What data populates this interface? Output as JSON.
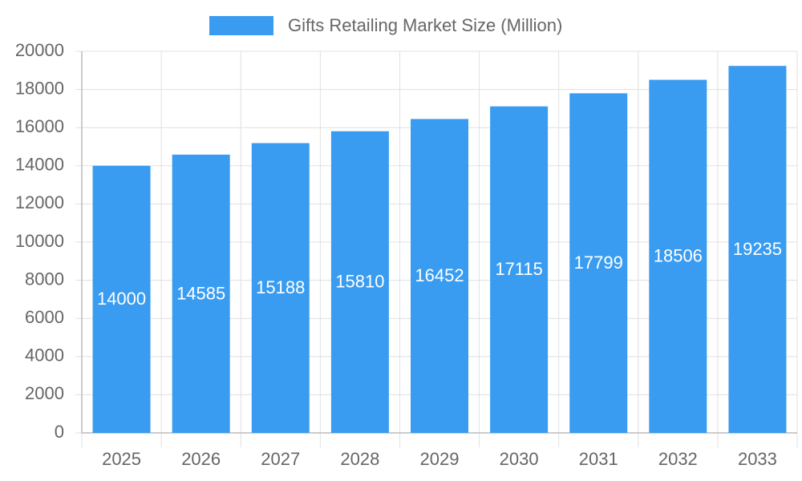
{
  "chart_data": {
    "type": "bar",
    "categories": [
      "2025",
      "2026",
      "2027",
      "2028",
      "2029",
      "2030",
      "2031",
      "2032",
      "2033"
    ],
    "series": [
      {
        "name": "Gifts Retailing Market Size (Million)",
        "color": "#399cf0",
        "values": [
          14000,
          14585,
          15188,
          15810,
          16452,
          17115,
          17799,
          18506,
          19235
        ]
      }
    ],
    "ylim": [
      0,
      20000
    ],
    "yticks": [
      0,
      2000,
      4000,
      6000,
      8000,
      10000,
      12000,
      14000,
      16000,
      18000,
      20000
    ],
    "grid": true,
    "legend": "top"
  }
}
